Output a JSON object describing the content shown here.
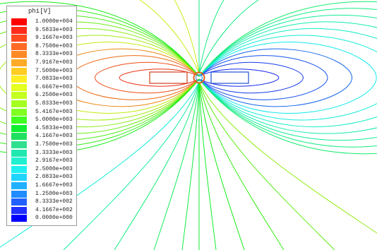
{
  "legend": {
    "title": "phi[V]",
    "entries": [
      {
        "label": "1.0000e+004",
        "color": "#ff0000"
      },
      {
        "label": "9.5833e+003",
        "color": "#ff2a1a"
      },
      {
        "label": "9.1667e+003",
        "color": "#ff4a20"
      },
      {
        "label": "8.7500e+003",
        "color": "#ff6a24"
      },
      {
        "label": "8.3333e+003",
        "color": "#ff8a28"
      },
      {
        "label": "7.9167e+003",
        "color": "#ffaa28"
      },
      {
        "label": "7.5000e+003",
        "color": "#ffcc22"
      },
      {
        "label": "7.0833e+003",
        "color": "#ffee22"
      },
      {
        "label": "6.6667e+003",
        "color": "#e4ff20"
      },
      {
        "label": "6.2500e+003",
        "color": "#c4ff20"
      },
      {
        "label": "5.8333e+003",
        "color": "#a4ff20"
      },
      {
        "label": "5.4167e+003",
        "color": "#80ff20"
      },
      {
        "label": "5.0000e+003",
        "color": "#40ff20"
      },
      {
        "label": "4.5833e+003",
        "color": "#10f030"
      },
      {
        "label": "4.1667e+003",
        "color": "#20e060"
      },
      {
        "label": "3.7500e+003",
        "color": "#30e090"
      },
      {
        "label": "3.3333e+003",
        "color": "#20e8b0"
      },
      {
        "label": "2.9167e+003",
        "color": "#20f0d0"
      },
      {
        "label": "2.5000e+003",
        "color": "#20f0f0"
      },
      {
        "label": "2.0833e+003",
        "color": "#20d4ff"
      },
      {
        "label": "1.6667e+003",
        "color": "#20b0ff"
      },
      {
        "label": "1.2500e+003",
        "color": "#208cff"
      },
      {
        "label": "8.3333e+002",
        "color": "#2060ff"
      },
      {
        "label": "4.1667e+002",
        "color": "#2030ff"
      },
      {
        "label": "0.0000e+000",
        "color": "#0000ff"
      }
    ]
  }
}
